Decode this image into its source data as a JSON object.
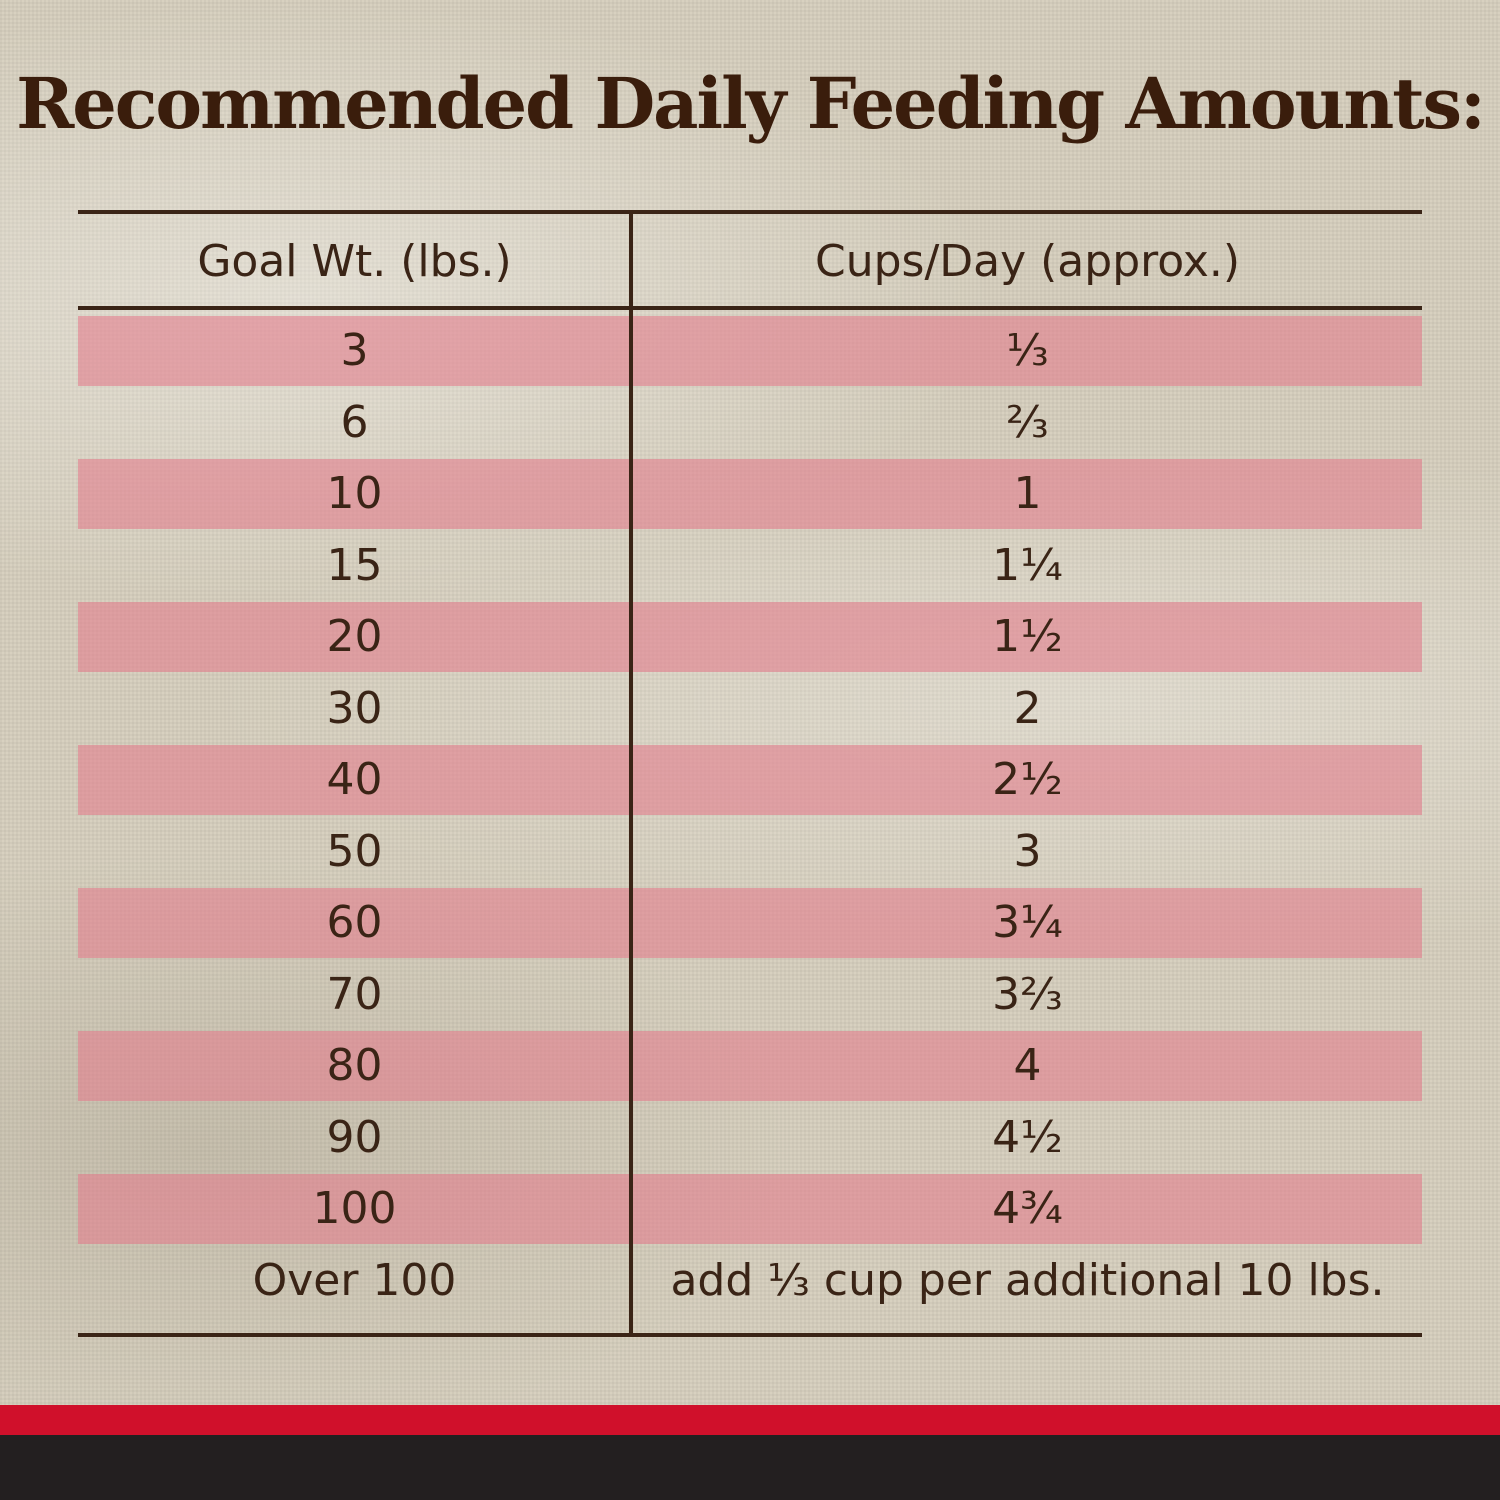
{
  "title": "Recommended Daily Feeding Amounts:",
  "table": {
    "headers": [
      "Goal Wt. (lbs.)",
      "Cups/Day (approx.)"
    ],
    "rows": [
      [
        "3",
        "⅓"
      ],
      [
        "6",
        "⅔"
      ],
      [
        "10",
        "1"
      ],
      [
        "15",
        "1¼"
      ],
      [
        "20",
        "1½"
      ],
      [
        "30",
        "2"
      ],
      [
        "40",
        "2½"
      ],
      [
        "50",
        "3"
      ],
      [
        "60",
        "3¼"
      ],
      [
        "70",
        "3⅔"
      ],
      [
        "80",
        "4"
      ],
      [
        "90",
        "4½"
      ],
      [
        "100",
        "4¾"
      ],
      [
        "Over 100",
        "add ⅓ cup per additional 10 lbs."
      ]
    ]
  }
}
